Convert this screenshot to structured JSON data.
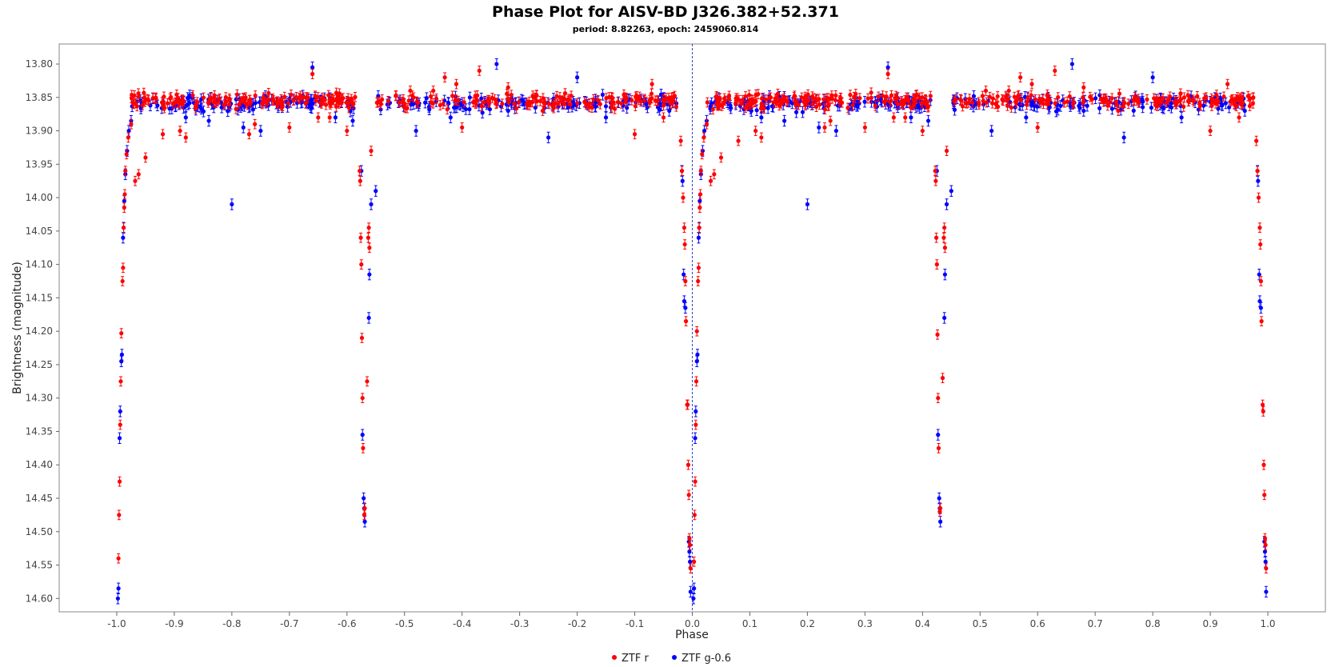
{
  "chart_data": {
    "type": "scatter",
    "title": "Phase Plot for AISV-BD J326.382+52.371",
    "subtitle": "period: 8.82263, epoch: 2459060.814",
    "xlabel": "Phase",
    "ylabel": "Brightness (magnitude)",
    "xlim": [
      -1.1,
      1.1
    ],
    "ylim": [
      13.77,
      14.62
    ],
    "y_inverted": true,
    "grid": false,
    "legend_position": "bottom-center",
    "x_ticks": [
      -1.0,
      -0.9,
      -0.8,
      -0.7,
      -0.6,
      -0.5,
      -0.4,
      -0.3,
      -0.2,
      -0.1,
      0.0,
      0.1,
      0.2,
      0.3,
      0.4,
      0.5,
      0.6,
      0.7,
      0.8,
      0.9,
      1.0
    ],
    "x_tick_labels": [
      "-1.0",
      "-0.9",
      "-0.8",
      "-0.7",
      "-0.6",
      "-0.5",
      "-0.4",
      "-0.3",
      "-0.2",
      "-0.1",
      "0.0",
      "0.1",
      "0.2",
      "0.3",
      "0.4",
      "0.5",
      "0.6",
      "0.7",
      "0.8",
      "0.9",
      "1.0"
    ],
    "y_ticks": [
      13.8,
      13.85,
      13.9,
      13.95,
      14.0,
      14.05,
      14.1,
      14.15,
      14.2,
      14.25,
      14.3,
      14.35,
      14.4,
      14.45,
      14.5,
      14.55,
      14.6
    ],
    "y_tick_labels": [
      "13.80",
      "13.85",
      "13.90",
      "13.95",
      "14.00",
      "14.05",
      "14.10",
      "14.15",
      "14.20",
      "14.25",
      "14.30",
      "14.35",
      "14.40",
      "14.45",
      "14.50",
      "14.55",
      "14.60"
    ],
    "reference_line_x": 0.0,
    "series": [
      {
        "name": "ZTF r",
        "color": "#ff0000",
        "error": 0.007,
        "points": [
          [
            -0.997,
            14.54
          ],
          [
            -0.996,
            14.475
          ],
          [
            -0.995,
            14.425
          ],
          [
            -0.994,
            14.34
          ],
          [
            -0.993,
            14.275
          ],
          [
            -0.992,
            14.203
          ],
          [
            -0.99,
            14.125
          ],
          [
            -0.989,
            14.105
          ],
          [
            -0.988,
            14.045
          ],
          [
            -0.987,
            14.015
          ],
          [
            -0.986,
            13.995
          ],
          [
            -0.985,
            13.96
          ],
          [
            -0.983,
            13.935
          ],
          [
            -0.98,
            13.91
          ],
          [
            -0.975,
            13.89
          ],
          [
            -0.968,
            13.975
          ],
          [
            -0.962,
            13.965
          ],
          [
            -0.95,
            13.94
          ],
          [
            -0.92,
            13.905
          ],
          [
            -0.89,
            13.9
          ],
          [
            -0.88,
            13.91
          ],
          [
            -0.77,
            13.905
          ],
          [
            -0.76,
            13.89
          ],
          [
            -0.7,
            13.895
          ],
          [
            -0.66,
            13.815
          ],
          [
            -0.65,
            13.88
          ],
          [
            -0.63,
            13.88
          ],
          [
            -0.6,
            13.9
          ],
          [
            -0.578,
            13.96
          ],
          [
            -0.577,
            13.975
          ],
          [
            -0.576,
            14.06
          ],
          [
            -0.575,
            14.1
          ],
          [
            -0.574,
            14.21
          ],
          [
            -0.573,
            14.3
          ],
          [
            -0.572,
            14.375
          ],
          [
            -0.57,
            14.475
          ],
          [
            -0.569,
            14.465
          ],
          [
            -0.565,
            14.275
          ],
          [
            -0.563,
            14.06
          ],
          [
            -0.562,
            14.045
          ],
          [
            -0.561,
            14.075
          ],
          [
            -0.558,
            13.93
          ],
          [
            -0.49,
            13.84
          ],
          [
            -0.45,
            13.84
          ],
          [
            -0.43,
            13.82
          ],
          [
            -0.41,
            13.83
          ],
          [
            -0.4,
            13.895
          ],
          [
            -0.37,
            13.81
          ],
          [
            -0.32,
            13.835
          ],
          [
            -0.26,
            13.87
          ],
          [
            -0.16,
            13.86
          ],
          [
            -0.1,
            13.905
          ],
          [
            -0.07,
            13.83
          ],
          [
            -0.05,
            13.88
          ],
          [
            -0.02,
            13.915
          ],
          [
            -0.018,
            13.96
          ],
          [
            -0.016,
            14.0
          ],
          [
            -0.014,
            14.045
          ],
          [
            -0.013,
            14.07
          ],
          [
            -0.012,
            14.125
          ],
          [
            -0.011,
            14.185
          ],
          [
            -0.009,
            14.31
          ],
          [
            -0.008,
            14.31
          ],
          [
            -0.007,
            14.4
          ],
          [
            -0.006,
            14.445
          ],
          [
            -0.005,
            14.51
          ],
          [
            -0.004,
            14.52
          ],
          [
            -0.003,
            14.555
          ],
          [
            0.003,
            14.545
          ],
          [
            0.004,
            14.475
          ],
          [
            0.005,
            14.425
          ],
          [
            0.006,
            14.34
          ],
          [
            0.007,
            14.275
          ],
          [
            0.008,
            14.2
          ],
          [
            0.01,
            14.125
          ],
          [
            0.011,
            14.105
          ],
          [
            0.012,
            14.045
          ],
          [
            0.013,
            14.015
          ],
          [
            0.014,
            13.995
          ],
          [
            0.015,
            13.96
          ],
          [
            0.017,
            13.935
          ],
          [
            0.02,
            13.91
          ],
          [
            0.025,
            13.89
          ],
          [
            0.032,
            13.975
          ],
          [
            0.038,
            13.965
          ],
          [
            0.05,
            13.94
          ],
          [
            0.08,
            13.915
          ],
          [
            0.11,
            13.9
          ],
          [
            0.12,
            13.91
          ],
          [
            0.23,
            13.895
          ],
          [
            0.24,
            13.885
          ],
          [
            0.3,
            13.895
          ],
          [
            0.34,
            13.815
          ],
          [
            0.35,
            13.88
          ],
          [
            0.37,
            13.88
          ],
          [
            0.4,
            13.9
          ],
          [
            0.422,
            13.96
          ],
          [
            0.423,
            13.975
          ],
          [
            0.424,
            14.06
          ],
          [
            0.425,
            14.1
          ],
          [
            0.426,
            14.205
          ],
          [
            0.427,
            14.3
          ],
          [
            0.428,
            14.375
          ],
          [
            0.43,
            14.47
          ],
          [
            0.431,
            14.465
          ],
          [
            0.435,
            14.27
          ],
          [
            0.437,
            14.06
          ],
          [
            0.438,
            14.045
          ],
          [
            0.439,
            14.075
          ],
          [
            0.442,
            13.93
          ],
          [
            0.51,
            13.84
          ],
          [
            0.55,
            13.84
          ],
          [
            0.57,
            13.82
          ],
          [
            0.59,
            13.83
          ],
          [
            0.6,
            13.895
          ],
          [
            0.63,
            13.81
          ],
          [
            0.68,
            13.835
          ],
          [
            0.74,
            13.87
          ],
          [
            0.84,
            13.86
          ],
          [
            0.9,
            13.9
          ],
          [
            0.93,
            13.83
          ],
          [
            0.95,
            13.88
          ],
          [
            0.98,
            13.915
          ],
          [
            0.982,
            13.96
          ],
          [
            0.984,
            14.0
          ],
          [
            0.986,
            14.045
          ],
          [
            0.987,
            14.07
          ],
          [
            0.988,
            14.125
          ],
          [
            0.989,
            14.185
          ],
          [
            0.991,
            14.31
          ],
          [
            0.992,
            14.32
          ],
          [
            0.993,
            14.4
          ],
          [
            0.994,
            14.445
          ],
          [
            0.995,
            14.51
          ],
          [
            0.996,
            14.52
          ],
          [
            0.997,
            14.555
          ]
        ]
      },
      {
        "name": "ZTF g-0.6",
        "color": "#0000ff",
        "error": 0.008,
        "points": [
          [
            -0.998,
            14.6
          ],
          [
            -0.997,
            14.585
          ],
          [
            -0.995,
            14.36
          ],
          [
            -0.994,
            14.32
          ],
          [
            -0.992,
            14.245
          ],
          [
            -0.991,
            14.235
          ],
          [
            -0.989,
            14.06
          ],
          [
            -0.988,
            14.045
          ],
          [
            -0.987,
            14.005
          ],
          [
            -0.985,
            13.965
          ],
          [
            -0.982,
            13.93
          ],
          [
            -0.979,
            13.9
          ],
          [
            -0.975,
            13.885
          ],
          [
            -0.88,
            13.88
          ],
          [
            -0.84,
            13.885
          ],
          [
            -0.8,
            14.01
          ],
          [
            -0.78,
            13.895
          ],
          [
            -0.75,
            13.9
          ],
          [
            -0.66,
            13.805
          ],
          [
            -0.62,
            13.88
          ],
          [
            -0.59,
            13.885
          ],
          [
            -0.575,
            13.96
          ],
          [
            -0.573,
            14.355
          ],
          [
            -0.571,
            14.45
          ],
          [
            -0.57,
            14.465
          ],
          [
            -0.569,
            14.485
          ],
          [
            -0.562,
            14.18
          ],
          [
            -0.561,
            14.115
          ],
          [
            -0.558,
            14.01
          ],
          [
            -0.55,
            13.99
          ],
          [
            -0.48,
            13.9
          ],
          [
            -0.42,
            13.88
          ],
          [
            -0.34,
            13.8
          ],
          [
            -0.32,
            13.87
          ],
          [
            -0.25,
            13.91
          ],
          [
            -0.2,
            13.82
          ],
          [
            -0.15,
            13.88
          ],
          [
            -0.08,
            13.86
          ],
          [
            -0.04,
            13.87
          ],
          [
            -0.018,
            13.96
          ],
          [
            -0.017,
            13.975
          ],
          [
            -0.015,
            14.115
          ],
          [
            -0.014,
            14.155
          ],
          [
            -0.012,
            14.165
          ],
          [
            -0.006,
            14.515
          ],
          [
            -0.005,
            14.53
          ],
          [
            -0.004,
            14.545
          ],
          [
            -0.003,
            14.59
          ],
          [
            0.002,
            14.6
          ],
          [
            0.003,
            14.585
          ],
          [
            0.005,
            14.36
          ],
          [
            0.006,
            14.32
          ],
          [
            0.008,
            14.245
          ],
          [
            0.009,
            14.235
          ],
          [
            0.011,
            14.06
          ],
          [
            0.012,
            14.045
          ],
          [
            0.013,
            14.005
          ],
          [
            0.015,
            13.965
          ],
          [
            0.018,
            13.93
          ],
          [
            0.021,
            13.9
          ],
          [
            0.025,
            13.885
          ],
          [
            0.12,
            13.88
          ],
          [
            0.16,
            13.885
          ],
          [
            0.2,
            14.01
          ],
          [
            0.22,
            13.895
          ],
          [
            0.25,
            13.9
          ],
          [
            0.34,
            13.805
          ],
          [
            0.38,
            13.88
          ],
          [
            0.41,
            13.885
          ],
          [
            0.425,
            13.96
          ],
          [
            0.427,
            14.355
          ],
          [
            0.429,
            14.45
          ],
          [
            0.43,
            14.465
          ],
          [
            0.431,
            14.485
          ],
          [
            0.438,
            14.18
          ],
          [
            0.439,
            14.115
          ],
          [
            0.442,
            14.01
          ],
          [
            0.45,
            13.99
          ],
          [
            0.52,
            13.9
          ],
          [
            0.58,
            13.88
          ],
          [
            0.66,
            13.8
          ],
          [
            0.68,
            13.87
          ],
          [
            0.75,
            13.91
          ],
          [
            0.8,
            13.82
          ],
          [
            0.85,
            13.88
          ],
          [
            0.92,
            13.86
          ],
          [
            0.96,
            13.87
          ],
          [
            0.982,
            13.96
          ],
          [
            0.983,
            13.975
          ],
          [
            0.985,
            14.115
          ],
          [
            0.986,
            14.155
          ],
          [
            0.988,
            14.165
          ],
          [
            0.994,
            14.515
          ],
          [
            0.995,
            14.53
          ],
          [
            0.996,
            14.545
          ],
          [
            0.997,
            14.59
          ]
        ]
      }
    ],
    "plateau_band": {
      "segments": [
        {
          "x_start": -0.975,
          "x_end": -0.585
        },
        {
          "x_start": -0.548,
          "x_end": -0.025
        },
        {
          "x_start": 0.025,
          "x_end": 0.415
        },
        {
          "x_start": 0.452,
          "x_end": 0.975
        }
      ],
      "center_mag": 13.855,
      "spread_mag": 0.018,
      "r_count_per_segment": 150,
      "g_count_per_segment": 110
    }
  },
  "legend": [
    {
      "label": "ZTF r",
      "color": "#ff0000"
    },
    {
      "label": "ZTF g-0.6",
      "color": "#0000ff"
    }
  ]
}
